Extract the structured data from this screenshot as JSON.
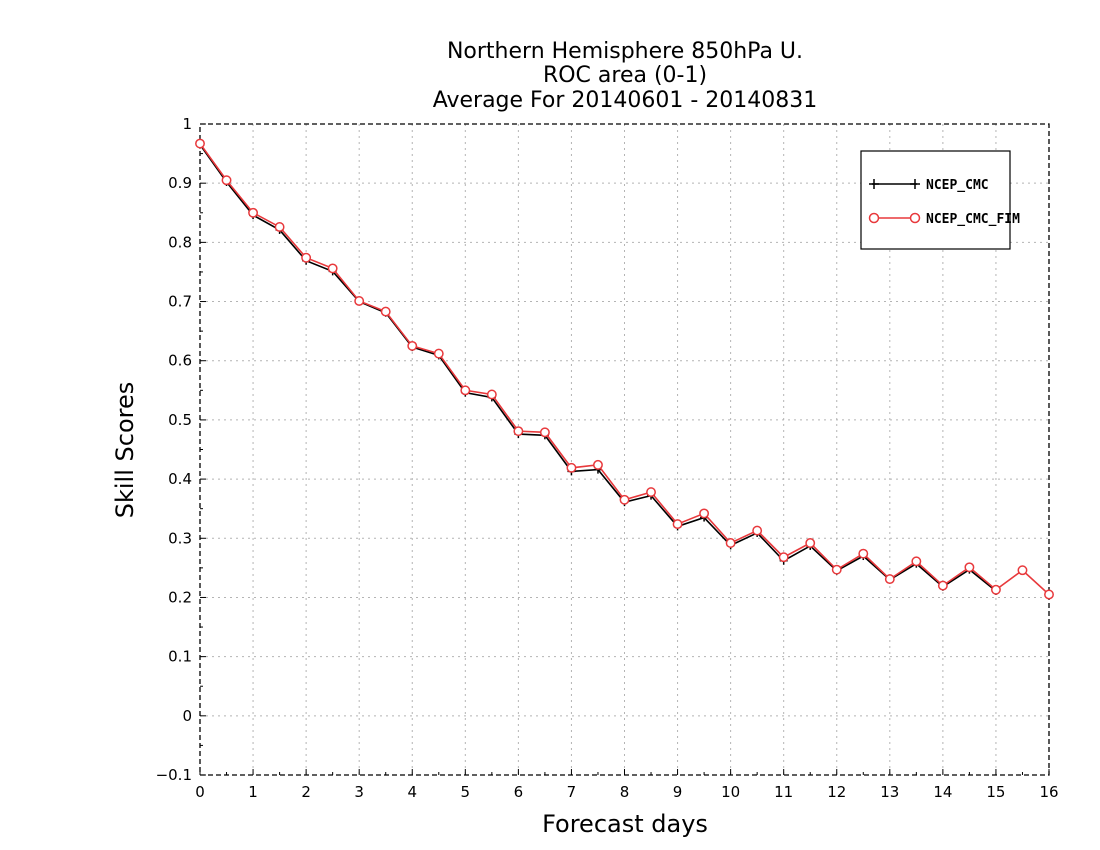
{
  "chart_data": {
    "type": "line",
    "title": [
      "Northern Hemisphere 850hPa U.",
      "ROC area (0-1)",
      "Average For 20140601 - 20140831"
    ],
    "xlabel": "Forecast days",
    "ylabel": "Skill Scores",
    "xlim": [
      0,
      16
    ],
    "ylim": [
      -0.1,
      1
    ],
    "x_ticks": [
      "0",
      "1",
      "2",
      "3",
      "4",
      "5",
      "6",
      "7",
      "8",
      "9",
      "10",
      "11",
      "12",
      "13",
      "14",
      "15",
      "16"
    ],
    "y_ticks": [
      "-0.1",
      "0",
      "0.1",
      "0.2",
      "0.3",
      "0.4",
      "0.5",
      "0.6",
      "0.7",
      "0.8",
      "0.9",
      "1"
    ],
    "grid": true,
    "legend_position": "top-right",
    "x": [
      0,
      0.5,
      1,
      1.5,
      2,
      2.5,
      3,
      3.5,
      4,
      4.5,
      5,
      5.5,
      6,
      6.5,
      7,
      7.5,
      8,
      8.5,
      9,
      9.5,
      10,
      10.5,
      11,
      11.5,
      12,
      12.5,
      13,
      13.5,
      14,
      14.5,
      15,
      15.5,
      16
    ],
    "series": [
      {
        "name": "NCEP_CMC",
        "color": "#000000",
        "marker": "plus",
        "values": [
          0.965,
          0.902,
          0.846,
          0.821,
          0.769,
          0.751,
          0.7,
          0.681,
          0.623,
          0.609,
          0.546,
          0.538,
          0.476,
          0.474,
          0.413,
          0.416,
          0.361,
          0.372,
          0.32,
          0.335,
          0.288,
          0.309,
          0.262,
          0.287,
          0.245,
          0.27,
          0.23,
          0.257,
          0.218,
          0.247,
          0.211,
          null,
          null
        ]
      },
      {
        "name": "NCEP_CMC_FIM",
        "color": "#e8393c",
        "marker": "circle",
        "values": [
          0.967,
          0.905,
          0.85,
          0.826,
          0.774,
          0.756,
          0.701,
          0.683,
          0.625,
          0.612,
          0.55,
          0.543,
          0.481,
          0.479,
          0.419,
          0.424,
          0.365,
          0.378,
          0.324,
          0.342,
          0.292,
          0.313,
          0.268,
          0.292,
          0.247,
          0.274,
          0.231,
          0.261,
          0.22,
          0.251,
          0.213,
          0.246,
          0.205
        ]
      }
    ]
  }
}
